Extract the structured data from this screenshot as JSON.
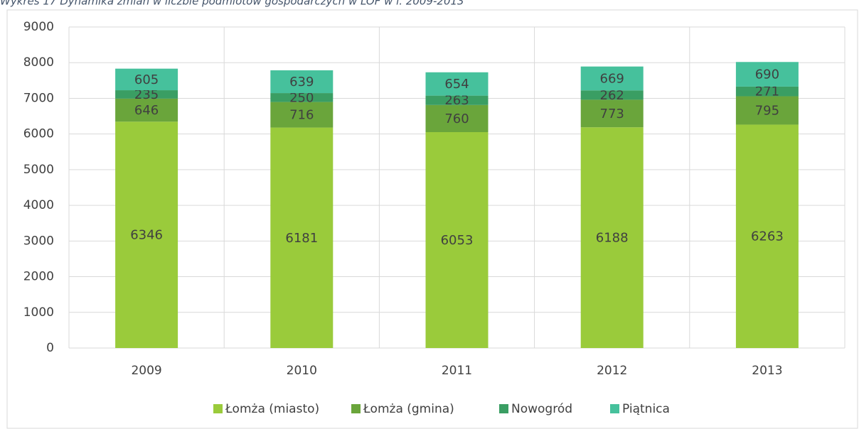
{
  "chart_data": {
    "type": "stacked_bar",
    "title": "Wykres 17 Dynamika zmian w liczbie podmiotów gospodarczych w LOF w l. 2009-2013",
    "categories": [
      "2009",
      "2010",
      "2011",
      "2012",
      "2013"
    ],
    "series": [
      {
        "name": "Łomża (miasto)",
        "color": "#9acb3b",
        "values": [
          6346,
          6181,
          6053,
          6188,
          6263
        ]
      },
      {
        "name": "Łomża (gmina)",
        "color": "#6aa53b",
        "values": [
          646,
          716,
          760,
          773,
          795
        ]
      },
      {
        "name": "Nowogród",
        "color": "#3a9e63",
        "values": [
          235,
          250,
          263,
          262,
          271
        ]
      },
      {
        "name": "Piątnica",
        "color": "#46c19c",
        "values": [
          605,
          639,
          654,
          669,
          690
        ]
      }
    ],
    "ylim": [
      0,
      9000
    ],
    "yticks": [
      0,
      1000,
      2000,
      3000,
      4000,
      5000,
      6000,
      7000,
      8000,
      9000
    ],
    "grid": true,
    "legend": "bottom"
  }
}
